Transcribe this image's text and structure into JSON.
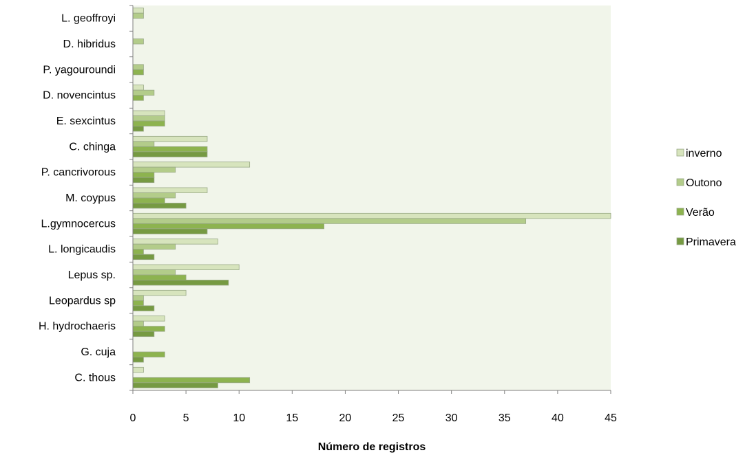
{
  "chart_data": {
    "type": "bar",
    "orientation": "horizontal",
    "xlabel": "Número de registros",
    "ylabel": "",
    "xlim": [
      0,
      45
    ],
    "x_ticks": [
      0,
      5,
      10,
      15,
      20,
      25,
      30,
      35,
      40,
      45
    ],
    "grid": false,
    "legend_position": "right",
    "plot_background": "#f1f5ea",
    "categories": [
      "L. geoffroyi",
      "D. hibridus",
      "P. yagouroundi",
      "D. novencintus",
      "E. sexcintus",
      "C. chinga",
      "P. cancrivorous",
      "M. coypus",
      "L.gymnocercus",
      "L. longicaudis",
      "Lepus sp.",
      "Leopardus sp",
      "H. hydrochaeris",
      "G. cuja",
      "C. thous"
    ],
    "series": [
      {
        "name": "inverno",
        "color": "#d7e4bd",
        "values": [
          1,
          0,
          0,
          1,
          3,
          7,
          11,
          7,
          45,
          8,
          10,
          5,
          3,
          0,
          1
        ]
      },
      {
        "name": "Outono",
        "color": "#b3cc8a",
        "values": [
          1,
          1,
          1,
          2,
          3,
          2,
          4,
          4,
          37,
          4,
          4,
          1,
          1,
          0,
          0
        ]
      },
      {
        "name": "Verão",
        "color": "#8db34f",
        "values": [
          0,
          0,
          1,
          1,
          3,
          7,
          2,
          3,
          18,
          1,
          5,
          1,
          3,
          3,
          11
        ]
      },
      {
        "name": "Primavera",
        "color": "#769a42",
        "values": [
          0,
          0,
          0,
          0,
          1,
          7,
          2,
          5,
          7,
          2,
          9,
          2,
          2,
          1,
          8
        ]
      }
    ]
  }
}
